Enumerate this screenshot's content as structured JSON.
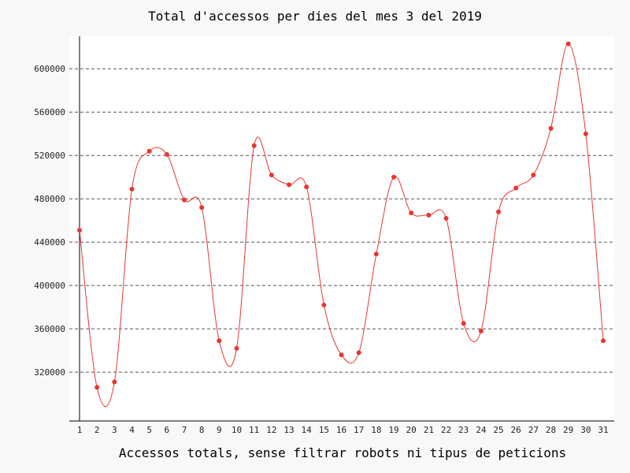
{
  "chart_data": {
    "type": "line",
    "title": "Total d'accessos per dies del mes 3 del 2019",
    "xlabel": "Accessos totals, sense filtrar robots ni tipus de peticions",
    "ylabel": "",
    "categories": [
      "1",
      "2",
      "3",
      "4",
      "5",
      "6",
      "7",
      "8",
      "9",
      "10",
      "11",
      "12",
      "13",
      "14",
      "15",
      "16",
      "17",
      "18",
      "19",
      "20",
      "21",
      "22",
      "23",
      "24",
      "25",
      "26",
      "27",
      "28",
      "29",
      "30",
      "31"
    ],
    "yticks": [
      320000,
      360000,
      400000,
      440000,
      480000,
      520000,
      560000,
      600000
    ],
    "ylim": [
      275000,
      630000
    ],
    "grid": true,
    "legend": "none",
    "series": [
      {
        "values": [
          451000,
          306000,
          311000,
          489000,
          524000,
          521000,
          479000,
          472000,
          349000,
          342000,
          529000,
          502000,
          493000,
          491000,
          382000,
          336000,
          338000,
          429000,
          500000,
          467000,
          465000,
          462000,
          365000,
          358000,
          468000,
          490000,
          502000,
          545000,
          623000,
          540000,
          349000
        ],
        "color": "#e8372e"
      }
    ]
  }
}
